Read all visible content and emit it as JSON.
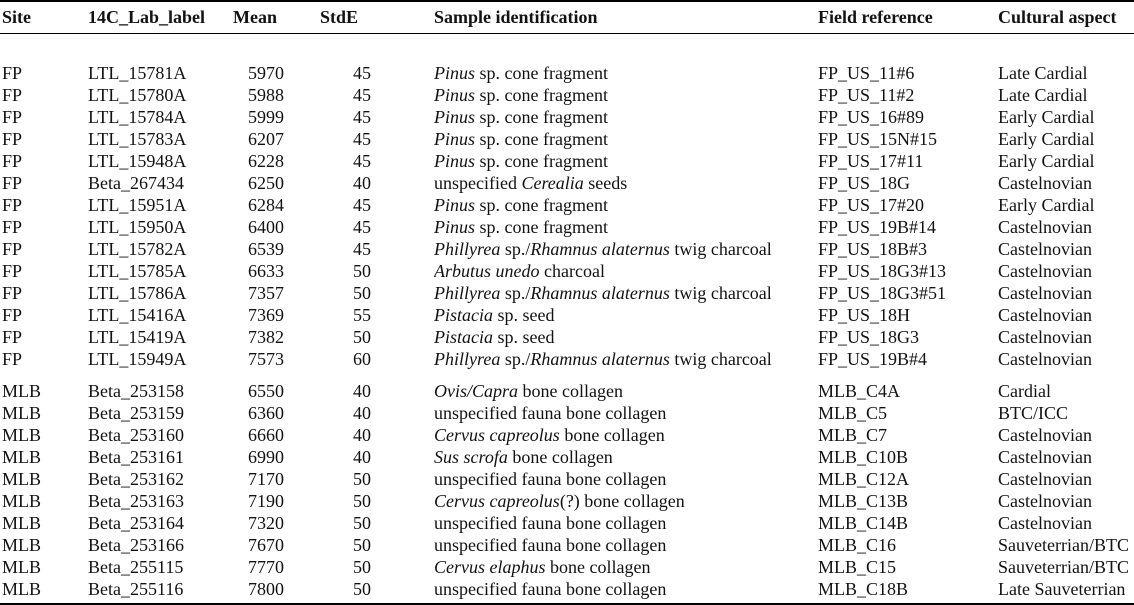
{
  "table": {
    "columns": [
      {
        "key": "site",
        "label": "Site"
      },
      {
        "key": "lab",
        "label": "14C_Lab_label"
      },
      {
        "key": "mean",
        "label": "Mean"
      },
      {
        "key": "stde",
        "label": "StdE"
      },
      {
        "key": "sample",
        "label": "Sample identification"
      },
      {
        "key": "field",
        "label": "Field reference"
      },
      {
        "key": "cultural",
        "label": "Cultural aspect"
      }
    ],
    "groups": [
      {
        "rows": [
          {
            "site": "FP",
            "lab": "LTL_15781A",
            "mean": "5970",
            "stde": "45",
            "sample": [
              [
                "Pinus",
                true
              ],
              [
                " sp. cone fragment",
                false
              ]
            ],
            "field": "FP_US_11#6",
            "cultural": "Late Cardial"
          },
          {
            "site": "FP",
            "lab": "LTL_15780A",
            "mean": "5988",
            "stde": "45",
            "sample": [
              [
                "Pinus",
                true
              ],
              [
                " sp. cone fragment",
                false
              ]
            ],
            "field": "FP_US_11#2",
            "cultural": "Late Cardial"
          },
          {
            "site": "FP",
            "lab": "LTL_15784A",
            "mean": "5999",
            "stde": "45",
            "sample": [
              [
                "Pinus",
                true
              ],
              [
                " sp. cone fragment",
                false
              ]
            ],
            "field": "FP_US_16#89",
            "cultural": "Early Cardial"
          },
          {
            "site": "FP",
            "lab": "LTL_15783A",
            "mean": "6207",
            "stde": "45",
            "sample": [
              [
                "Pinus",
                true
              ],
              [
                " sp. cone fragment",
                false
              ]
            ],
            "field": "FP_US_15N#15",
            "cultural": "Early Cardial"
          },
          {
            "site": "FP",
            "lab": "LTL_15948A",
            "mean": "6228",
            "stde": "45",
            "sample": [
              [
                "Pinus",
                true
              ],
              [
                " sp. cone fragment",
                false
              ]
            ],
            "field": "FP_US_17#11",
            "cultural": "Early Cardial"
          },
          {
            "site": "FP",
            "lab": "Beta_267434",
            "mean": "6250",
            "stde": "40",
            "sample": [
              [
                "unspecified ",
                false
              ],
              [
                "Cerealia",
                true
              ],
              [
                " seeds",
                false
              ]
            ],
            "field": "FP_US_18G",
            "cultural": "Castelnovian"
          },
          {
            "site": "FP",
            "lab": "LTL_15951A",
            "mean": "6284",
            "stde": "45",
            "sample": [
              [
                "Pinus",
                true
              ],
              [
                " sp. cone fragment",
                false
              ]
            ],
            "field": "FP_US_17#20",
            "cultural": "Early Cardial"
          },
          {
            "site": "FP",
            "lab": "LTL_15950A",
            "mean": "6400",
            "stde": "45",
            "sample": [
              [
                "Pinus",
                true
              ],
              [
                " sp. cone fragment",
                false
              ]
            ],
            "field": "FP_US_19B#14",
            "cultural": "Castelnovian"
          },
          {
            "site": "FP",
            "lab": "LTL_15782A",
            "mean": "6539",
            "stde": "45",
            "sample": [
              [
                "Phillyrea",
                true
              ],
              [
                " sp./",
                false
              ],
              [
                "Rhamnus alaternus",
                true
              ],
              [
                " twig charcoal",
                false
              ]
            ],
            "field": "FP_US_18B#3",
            "cultural": "Castelnovian"
          },
          {
            "site": "FP",
            "lab": "LTL_15785A",
            "mean": "6633",
            "stde": "50",
            "sample": [
              [
                "Arbutus unedo",
                true
              ],
              [
                " charcoal",
                false
              ]
            ],
            "field": "FP_US_18G3#13",
            "cultural": "Castelnovian"
          },
          {
            "site": "FP",
            "lab": "LTL_15786A",
            "mean": "7357",
            "stde": "50",
            "sample": [
              [
                "Phillyrea",
                true
              ],
              [
                " sp./",
                false
              ],
              [
                "Rhamnus alaternus",
                true
              ],
              [
                " twig charcoal",
                false
              ]
            ],
            "field": "FP_US_18G3#51",
            "cultural": "Castelnovian"
          },
          {
            "site": "FP",
            "lab": "LTL_15416A",
            "mean": "7369",
            "stde": "55",
            "sample": [
              [
                "Pistacia",
                true
              ],
              [
                " sp. seed",
                false
              ]
            ],
            "field": "FP_US_18H",
            "cultural": "Castelnovian"
          },
          {
            "site": "FP",
            "lab": "LTL_15419A",
            "mean": "7382",
            "stde": "50",
            "sample": [
              [
                "Pistacia",
                true
              ],
              [
                " sp. seed",
                false
              ]
            ],
            "field": "FP_US_18G3",
            "cultural": "Castelnovian"
          },
          {
            "site": "FP",
            "lab": "LTL_15949A",
            "mean": "7573",
            "stde": "60",
            "sample": [
              [
                "Phillyrea",
                true
              ],
              [
                " sp./",
                false
              ],
              [
                "Rhamnus alaternus",
                true
              ],
              [
                " twig charcoal",
                false
              ]
            ],
            "field": "FP_US_19B#4",
            "cultural": "Castelnovian"
          }
        ]
      },
      {
        "rows": [
          {
            "site": "MLB",
            "lab": "Beta_253158",
            "mean": "6550",
            "stde": "40",
            "sample": [
              [
                "Ovis/Capra",
                true
              ],
              [
                " bone collagen",
                false
              ]
            ],
            "field": "MLB_C4A",
            "cultural": "Cardial"
          },
          {
            "site": "MLB",
            "lab": "Beta_253159",
            "mean": "6360",
            "stde": "40",
            "sample": [
              [
                "unspecified fauna bone collagen",
                false
              ]
            ],
            "field": "MLB_C5",
            "cultural": "BTC/ICC"
          },
          {
            "site": "MLB",
            "lab": "Beta_253160",
            "mean": "6660",
            "stde": "40",
            "sample": [
              [
                "Cervus capreolus",
                true
              ],
              [
                " bone collagen",
                false
              ]
            ],
            "field": "MLB_C7",
            "cultural": "Castelnovian"
          },
          {
            "site": "MLB",
            "lab": "Beta_253161",
            "mean": "6990",
            "stde": "40",
            "sample": [
              [
                "Sus scrofa",
                true
              ],
              [
                " bone collagen",
                false
              ]
            ],
            "field": "MLB_C10B",
            "cultural": "Castelnovian"
          },
          {
            "site": "MLB",
            "lab": "Beta_253162",
            "mean": "7170",
            "stde": "50",
            "sample": [
              [
                "unspecified fauna bone collagen",
                false
              ]
            ],
            "field": "MLB_C12A",
            "cultural": "Castelnovian"
          },
          {
            "site": "MLB",
            "lab": "Beta_253163",
            "mean": "7190",
            "stde": "50",
            "sample": [
              [
                "Cervus capreolus",
                true
              ],
              [
                "(?) bone collagen",
                false
              ]
            ],
            "field": "MLB_C13B",
            "cultural": "Castelnovian"
          },
          {
            "site": "MLB",
            "lab": "Beta_253164",
            "mean": "7320",
            "stde": "50",
            "sample": [
              [
                "unspecified fauna bone collagen",
                false
              ]
            ],
            "field": "MLB_C14B",
            "cultural": "Castelnovian"
          },
          {
            "site": "MLB",
            "lab": "Beta_253166",
            "mean": "7670",
            "stde": "50",
            "sample": [
              [
                "unspecified fauna bone collagen",
                false
              ]
            ],
            "field": "MLB_C16",
            "cultural": "Sauveterrian/BTC"
          },
          {
            "site": "MLB",
            "lab": "Beta_255115",
            "mean": "7770",
            "stde": "50",
            "sample": [
              [
                "Cervus elaphus",
                true
              ],
              [
                " bone collagen",
                false
              ]
            ],
            "field": "MLB_C15",
            "cultural": "Sauveterrian/BTC"
          },
          {
            "site": "MLB",
            "lab": "Beta_255116",
            "mean": "7800",
            "stde": "50",
            "sample": [
              [
                "unspecified fauna bone collagen",
                false
              ]
            ],
            "field": "MLB_C18B",
            "cultural": "Late Sauveterrian"
          }
        ]
      }
    ]
  }
}
